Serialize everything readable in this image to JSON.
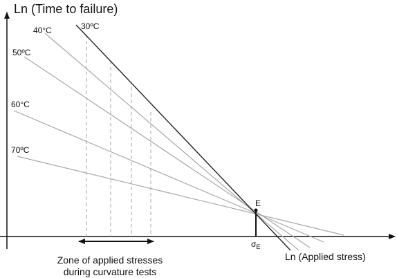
{
  "title": "",
  "y_axis_title": "Ln (Time to failure)",
  "x_axis_title": "Ln (Applied stress)",
  "temperature_lines": [
    {
      "label": "30ºC"
    },
    {
      "label": "40°C"
    },
    {
      "label": "50ºC"
    },
    {
      "label": "60°C"
    },
    {
      "label": "70ºC"
    }
  ],
  "intersection_point": {
    "label": "E"
  },
  "sigma_label": {
    "symbol": "σ",
    "subscript": "E"
  },
  "zone_caption": {
    "line1": "Zone of applied stresses",
    "line2": "during curvature tests"
  },
  "colors": {
    "axis": "#111111",
    "line_30": "#222222",
    "line_other": "#a8a8a8",
    "dashed": "#b4b4b4"
  }
}
